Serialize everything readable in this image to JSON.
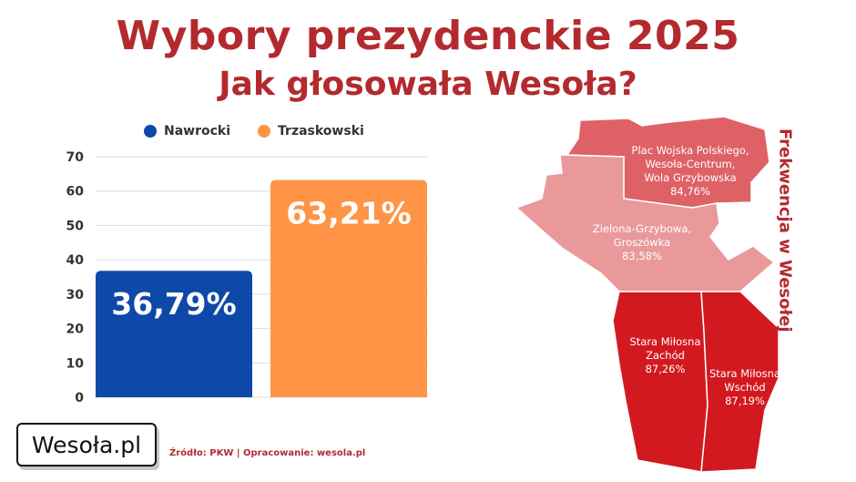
{
  "title": {
    "line1": "Wybory prezydenckie 2025",
    "line2": "Jak głosowała Wesoła?"
  },
  "legend": {
    "nawrocki": "Nawrocki",
    "trzaskowski": "Trzaskowski"
  },
  "colors": {
    "accent": "#b32a2e",
    "nawrocki": "#0e48a8",
    "trzaskowski": "#ff9446"
  },
  "chart_data": {
    "type": "bar",
    "categories": [
      "Nawrocki",
      "Trzaskowski"
    ],
    "values": [
      36.79,
      63.21
    ],
    "data_labels": [
      "36,79%",
      "63,21%"
    ],
    "colors": [
      "#0e48a8",
      "#ff9446"
    ],
    "ylim": [
      0,
      70
    ],
    "yticks": [
      0,
      10,
      20,
      30,
      40,
      50,
      60,
      70
    ],
    "legend_position": "top",
    "grid": true
  },
  "map": {
    "title": "Frekwencja w Wesołej",
    "regions": [
      {
        "name_lines": [
          "Plac Wojska Polskiego,",
          "Wesoła-Centrum,",
          "Wola Grzybowska"
        ],
        "turnout": "84,76%",
        "color": "#de6166"
      },
      {
        "name_lines": [
          "Zielona-Grzybowa,",
          "Groszówka"
        ],
        "turnout": "83,58%",
        "color": "#e9999a"
      },
      {
        "name_lines": [
          "Stara Miłosna",
          "Zachód"
        ],
        "turnout": "87,26%",
        "color": "#d21920"
      },
      {
        "name_lines": [
          "Stara Miłosna",
          "Wschód"
        ],
        "turnout": "87,19%",
        "color": "#d21920"
      }
    ]
  },
  "logo": "Wesoła.pl",
  "source": "Źródło: PKW | Opracowanie: wesola.pl"
}
